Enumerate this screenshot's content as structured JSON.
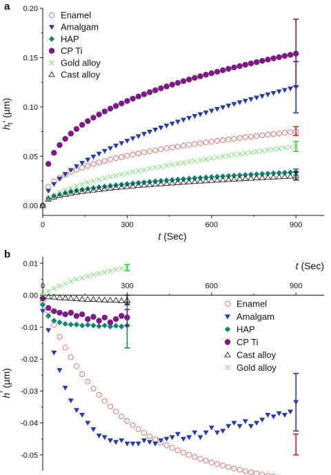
{
  "colors": {
    "enamel": "#d9777a",
    "amalgam": "#2b3aa8",
    "hap": "#138474",
    "cpti": "#7a1a82",
    "gold": "#8fe08a",
    "cast": "#333333",
    "axis": "#111111",
    "amalgam_err": "#2b3aa8",
    "enamel_err": "#d2222a",
    "hap_err": "#138474",
    "cpti_err": "#7a1a82",
    "gold_err": "#3ec64a",
    "cast_err": "#111111"
  },
  "chart_data": [
    {
      "panel_label": "a",
      "type": "scatter",
      "xlabel_var": "t",
      "xlabel_unit": "(Sec)",
      "ylabel_var": "h",
      "ylabel_sub": "t",
      "ylabel_unit": "(µm)",
      "xlim": [
        0,
        1000
      ],
      "ylim": [
        -0.01,
        0.2
      ],
      "xticks": [
        0,
        300,
        600,
        900
      ],
      "xtick_labels": [
        "0",
        "300",
        "600",
        "900"
      ],
      "yticks": [
        0.0,
        0.05,
        0.1,
        0.15,
        0.2
      ],
      "ytick_labels": [
        "0.00",
        "0.05",
        "0.10",
        "0.15",
        "0.20"
      ],
      "legend_position": "top-left",
      "legend": [
        {
          "key": "enamel",
          "label": "Enamel",
          "marker": "circle-open"
        },
        {
          "key": "amalgam",
          "label": "Amalgam",
          "marker": "triangle-down"
        },
        {
          "key": "hap",
          "label": "HAP",
          "marker": "diamond"
        },
        {
          "key": "cpti",
          "label": "CP Ti",
          "marker": "circle"
        },
        {
          "key": "gold",
          "label": "Gold alloy",
          "marker": "x"
        },
        {
          "key": "cast",
          "label": "Cast alloy",
          "marker": "triangle-open"
        }
      ],
      "series": [
        {
          "key": "enamel",
          "name": "Enamel",
          "x0": 0,
          "dx": 20,
          "n": 46,
          "fn": "pow",
          "params": {
            "a": 0.075,
            "t0": 900,
            "p": 0.36
          },
          "err": {
            "x": 900,
            "y": 0.075,
            "lo": 0.071,
            "hi": 0.08
          }
        },
        {
          "key": "amalgam",
          "name": "Amalgam",
          "x0": 0,
          "dx": 20,
          "n": 46,
          "fn": "pow",
          "params": {
            "a": 0.12,
            "t0": 900,
            "p": 0.55
          },
          "err": {
            "x": 900,
            "y": 0.12,
            "lo": 0.094,
            "hi": 0.146
          }
        },
        {
          "key": "hap",
          "name": "HAP",
          "x0": 0,
          "dx": 20,
          "n": 46,
          "fn": "pow",
          "params": {
            "a": 0.034,
            "t0": 900,
            "p": 0.4
          },
          "err": {
            "x": 900,
            "y": 0.034,
            "lo": 0.031,
            "hi": 0.037
          }
        },
        {
          "key": "cpti",
          "name": "CP Ti",
          "x0": 0,
          "dx": 20,
          "n": 46,
          "fn": "pow",
          "params": {
            "a": 0.154,
            "t0": 900,
            "p": 0.34
          },
          "err": {
            "x": 900,
            "y": 0.155,
            "lo": 0.121,
            "hi": 0.189
          }
        },
        {
          "key": "gold",
          "name": "Gold alloy",
          "x0": 0,
          "dx": 20,
          "n": 46,
          "fn": "pow",
          "params": {
            "a": 0.06,
            "t0": 900,
            "p": 0.55
          },
          "err": {
            "x": 900,
            "y": 0.06,
            "lo": 0.055,
            "hi": 0.065
          }
        },
        {
          "key": "cast",
          "name": "Cast alloy",
          "x0": 0,
          "dx": 20,
          "n": 46,
          "fn": "pow",
          "params": {
            "a": 0.03,
            "t0": 900,
            "p": 0.4
          },
          "err": {
            "x": 900,
            "y": 0.03,
            "lo": 0.026,
            "hi": 0.034
          }
        }
      ]
    },
    {
      "panel_label": "b",
      "type": "scatter",
      "xlabel_var": "t",
      "xlabel_unit": "(Sec)",
      "ylabel_var": "h",
      "ylabel_sub": "",
      "ylabel_unit": "(µm)",
      "xlim": [
        0,
        1000
      ],
      "ylim": [
        -0.055,
        0.012
      ],
      "xticks": [
        0,
        300,
        600,
        900
      ],
      "xtick_labels": [
        "0",
        "300",
        "600",
        "900"
      ],
      "yticks": [
        0.01,
        0.0,
        -0.01,
        -0.02,
        -0.03,
        -0.04,
        -0.05
      ],
      "ytick_labels": [
        "0.01",
        "0.00",
        "-0.01",
        "-0.02",
        "-0.03",
        "-0.04",
        "-0.05"
      ],
      "legend_position": "center-right",
      "legend": [
        {
          "key": "enamel",
          "label": "Enamel",
          "marker": "circle-open"
        },
        {
          "key": "amalgam",
          "label": "Amalgam",
          "marker": "triangle-down"
        },
        {
          "key": "hap",
          "label": "HAP",
          "marker": "diamond"
        },
        {
          "key": "cpti",
          "label": "CP Ti",
          "marker": "circle"
        },
        {
          "key": "cast",
          "label": "Cast alloy",
          "marker": "triangle-open"
        },
        {
          "key": "gold",
          "label": "Gold alloy",
          "marker": "x"
        }
      ],
      "series": [
        {
          "key": "enamel",
          "name": "Enamel",
          "x0": 0,
          "dx": 20,
          "n": 46,
          "fn": "exp",
          "params": {
            "a": -0.05,
            "tau": 260,
            "b": -0.0065,
            "s": 0.003
          },
          "err": {
            "x": 900,
            "y": -0.047,
            "lo": -0.05,
            "hi": -0.0435
          }
        },
        {
          "key": "amalgam",
          "name": "Amalgam",
          "x": [
            0,
            20,
            40,
            60,
            80,
            100,
            120,
            140,
            160,
            180,
            200,
            220,
            240,
            260,
            280,
            300,
            320,
            340,
            360,
            380,
            400,
            420,
            440,
            460,
            480,
            500,
            520,
            540,
            560,
            580,
            600,
            620,
            640,
            660,
            680,
            700,
            720,
            740,
            760,
            780,
            800,
            820,
            840,
            860,
            880,
            900
          ],
          "y": [
            -0.005,
            -0.011,
            -0.018,
            -0.0235,
            -0.029,
            -0.033,
            -0.036,
            -0.0375,
            -0.04,
            -0.042,
            -0.044,
            -0.0445,
            -0.0455,
            -0.046,
            -0.0455,
            -0.0465,
            -0.0465,
            -0.0465,
            -0.0455,
            -0.046,
            -0.0465,
            -0.0455,
            -0.045,
            -0.0445,
            -0.0435,
            -0.045,
            -0.0445,
            -0.043,
            -0.0445,
            -0.043,
            -0.0415,
            -0.043,
            -0.0425,
            -0.041,
            -0.04,
            -0.041,
            -0.0395,
            -0.041,
            -0.04,
            -0.039,
            -0.0375,
            -0.038,
            -0.037,
            -0.0375,
            -0.0365,
            -0.0335
          ],
          "err": {
            "x": 900,
            "y": -0.0335,
            "lo": -0.0425,
            "hi": -0.0245
          }
        },
        {
          "key": "hap",
          "name": "HAP",
          "x": [
            0,
            20,
            40,
            60,
            80,
            100,
            120,
            140,
            160,
            180,
            200,
            220,
            240,
            260,
            280,
            300
          ],
          "y": [
            -0.003,
            -0.0065,
            -0.008,
            -0.0085,
            -0.009,
            -0.0092,
            -0.0092,
            -0.0095,
            -0.0093,
            -0.0095,
            -0.0097,
            -0.0095,
            -0.0098,
            -0.0096,
            -0.0098,
            -0.0095
          ],
          "err": {
            "x": 300,
            "y": -0.0095,
            "lo": -0.0165,
            "hi": -0.0025
          }
        },
        {
          "key": "cpti",
          "name": "CP Ti",
          "x": [
            0,
            20,
            40,
            60,
            80,
            100,
            120,
            140,
            160,
            180,
            200,
            220,
            240,
            260,
            280,
            300
          ],
          "y": [
            -0.001,
            -0.004,
            -0.005,
            -0.0055,
            -0.006,
            -0.0055,
            -0.0065,
            -0.006,
            -0.0075,
            -0.0068,
            -0.008,
            -0.007,
            -0.0085,
            -0.0075,
            -0.0065,
            -0.007
          ],
          "err": {
            "x": 300,
            "y": -0.007,
            "lo": -0.0095,
            "hi": -0.0045
          }
        },
        {
          "key": "cast",
          "name": "Cast alloy",
          "x": [
            0,
            20,
            40,
            60,
            80,
            100,
            120,
            140,
            160,
            180,
            200,
            220,
            240,
            260,
            280,
            300
          ],
          "y": [
            -0.0003,
            -0.0005,
            -0.0006,
            -0.0008,
            -0.0009,
            -0.001,
            -0.0011,
            -0.0012,
            -0.0013,
            -0.0013,
            -0.0014,
            -0.0015,
            -0.0015,
            -0.0016,
            -0.0017,
            -0.0015
          ],
          "err": {
            "x": 300,
            "y": -0.0015,
            "lo": -0.003,
            "hi": 0.0
          }
        },
        {
          "key": "gold",
          "name": "Gold alloy",
          "x": [
            0,
            20,
            40,
            60,
            80,
            100,
            120,
            140,
            160,
            180,
            200,
            220,
            240,
            260,
            280,
            300
          ],
          "y": [
            0.0003,
            0.0012,
            0.0021,
            0.0029,
            0.0036,
            0.0043,
            0.0049,
            0.0054,
            0.0059,
            0.0064,
            0.0068,
            0.0072,
            0.0076,
            0.008,
            0.0083,
            0.0086
          ],
          "err": {
            "x": 300,
            "y": 0.0086,
            "lo": 0.0076,
            "hi": 0.0096
          }
        }
      ]
    }
  ]
}
